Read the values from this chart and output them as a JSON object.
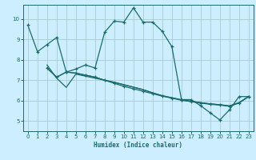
{
  "xlabel": "Humidex (Indice chaleur)",
  "bg_color": "#cceeff",
  "grid_color": "#aacccc",
  "line_color": "#1a6b6b",
  "xlim": [
    -0.5,
    23.5
  ],
  "ylim": [
    4.5,
    10.7
  ],
  "xticks": [
    0,
    1,
    2,
    3,
    4,
    5,
    6,
    7,
    8,
    9,
    10,
    11,
    12,
    13,
    14,
    15,
    16,
    17,
    18,
    19,
    20,
    21,
    22,
    23
  ],
  "yticks": [
    5,
    6,
    7,
    8,
    9,
    10
  ],
  "series1_x": [
    0,
    1,
    2,
    3,
    4,
    5,
    6,
    7,
    8,
    9,
    10,
    11,
    12,
    13,
    14,
    15,
    16,
    17,
    18,
    19,
    20,
    21,
    22,
    23
  ],
  "series1_y": [
    9.7,
    8.4,
    8.75,
    9.1,
    7.4,
    7.55,
    7.75,
    7.6,
    9.35,
    9.9,
    9.85,
    10.55,
    9.85,
    9.85,
    9.4,
    8.65,
    6.05,
    6.05,
    5.75,
    5.4,
    5.05,
    5.55,
    6.2,
    6.2
  ],
  "series2_x": [
    2,
    3,
    4,
    5,
    6,
    7,
    8,
    9,
    10,
    11,
    12,
    13,
    14,
    15,
    16,
    17,
    18,
    19,
    20,
    21,
    22,
    23
  ],
  "series2_y": [
    7.6,
    7.15,
    7.4,
    7.35,
    7.25,
    7.15,
    7.0,
    6.85,
    6.7,
    6.58,
    6.46,
    6.34,
    6.22,
    6.12,
    6.02,
    5.95,
    5.88,
    5.82,
    5.78,
    5.72,
    5.88,
    6.2
  ],
  "series3_x": [
    2,
    3,
    4,
    5,
    6,
    7,
    8,
    9,
    10,
    11,
    12,
    13,
    14,
    15,
    16,
    17,
    18,
    19,
    20,
    21,
    22,
    23
  ],
  "series3_y": [
    7.6,
    7.15,
    7.4,
    7.35,
    7.25,
    7.15,
    7.0,
    6.9,
    6.78,
    6.66,
    6.54,
    6.38,
    6.24,
    6.14,
    6.04,
    5.97,
    5.9,
    5.84,
    5.8,
    5.74,
    5.9,
    6.2
  ],
  "series4_x": [
    2,
    3,
    4,
    5,
    6,
    7,
    8,
    9,
    10,
    11,
    12,
    13,
    14,
    15,
    16,
    17,
    18,
    19,
    20,
    21,
    22,
    23
  ],
  "series4_y": [
    7.75,
    7.1,
    6.65,
    7.3,
    7.2,
    7.1,
    7.0,
    6.9,
    6.78,
    6.66,
    6.54,
    6.38,
    6.24,
    6.14,
    6.04,
    5.97,
    5.9,
    5.84,
    5.8,
    5.74,
    5.9,
    6.2
  ]
}
